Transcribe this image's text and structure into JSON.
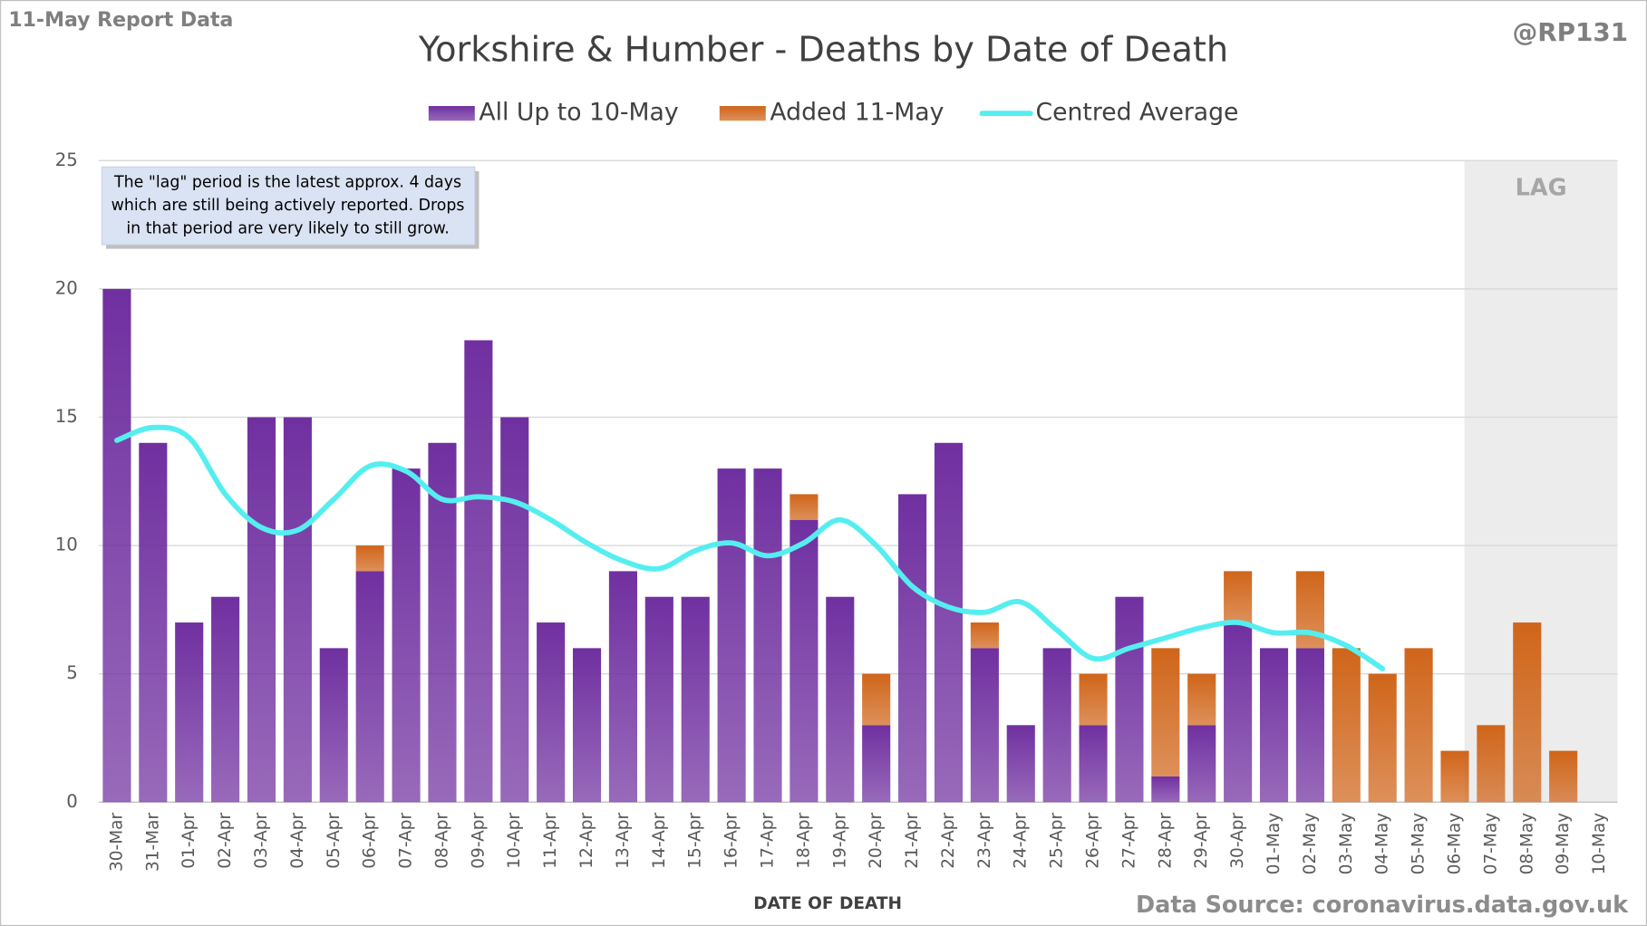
{
  "chart_data": {
    "type": "bar",
    "stacked": true,
    "title": "Yorkshire & Humber - Deaths by Date of Death",
    "header_left": "11-May Report Data",
    "header_right": "@RP131",
    "source": "Data Source: coronavirus.data.gov.uk",
    "x_label": "DATE OF DEATH",
    "annotation": [
      "The \"lag\" period is the latest approx. 4 days",
      "which are still being actively reported.  Drops",
      "in that period are very likely to still grow."
    ],
    "lag_label": "LAG",
    "lag_from": "07-May",
    "categories": [
      "30-Mar",
      "31-Mar",
      "01-Apr",
      "02-Apr",
      "03-Apr",
      "04-Apr",
      "05-Apr",
      "06-Apr",
      "07-Apr",
      "08-Apr",
      "09-Apr",
      "10-Apr",
      "11-Apr",
      "12-Apr",
      "13-Apr",
      "14-Apr",
      "15-Apr",
      "16-Apr",
      "17-Apr",
      "18-Apr",
      "19-Apr",
      "20-Apr",
      "21-Apr",
      "22-Apr",
      "23-Apr",
      "24-Apr",
      "25-Apr",
      "26-Apr",
      "27-Apr",
      "28-Apr",
      "29-Apr",
      "30-Apr",
      "01-May",
      "02-May",
      "03-May",
      "04-May",
      "05-May",
      "06-May",
      "07-May",
      "08-May",
      "09-May",
      "10-May"
    ],
    "series": [
      {
        "name": "All Up to 10-May",
        "color": "#7030a0",
        "values": [
          20,
          14,
          7,
          8,
          15,
          15,
          6,
          9,
          13,
          14,
          18,
          15,
          7,
          6,
          9,
          8,
          8,
          13,
          13,
          11,
          8,
          3,
          12,
          14,
          6,
          3,
          6,
          3,
          8,
          1,
          3,
          7,
          6,
          6,
          0,
          0,
          0,
          0,
          0,
          0,
          0,
          0
        ]
      },
      {
        "name": "Added 11-May",
        "color": "#d0651a",
        "values": [
          0,
          0,
          0,
          0,
          0,
          0,
          0,
          1,
          0,
          0,
          0,
          0,
          0,
          0,
          0,
          0,
          0,
          0,
          0,
          1,
          0,
          2,
          0,
          0,
          1,
          0,
          0,
          2,
          0,
          5,
          2,
          2,
          0,
          3,
          6,
          5,
          6,
          2,
          3,
          7,
          2,
          0
        ]
      },
      {
        "name": "Centred Average",
        "type": "line",
        "color": "#55eef0",
        "values": [
          14.1,
          14.6,
          14.2,
          12.0,
          10.7,
          10.6,
          11.8,
          13.1,
          12.9,
          11.8,
          11.9,
          11.7,
          11.0,
          10.1,
          9.4,
          9.1,
          9.8,
          10.1,
          9.6,
          10.1,
          11.0,
          10.0,
          8.4,
          7.6,
          7.4,
          7.8,
          6.7,
          5.6,
          6.0,
          6.4,
          6.8,
          7.0,
          6.6,
          6.6,
          6.1,
          5.2,
          null,
          null,
          null,
          null,
          null,
          null
        ]
      }
    ],
    "ylim": [
      0,
      25
    ],
    "yticks": [
      0,
      5,
      10,
      15,
      20,
      25
    ],
    "grid": true,
    "legend": "top"
  }
}
